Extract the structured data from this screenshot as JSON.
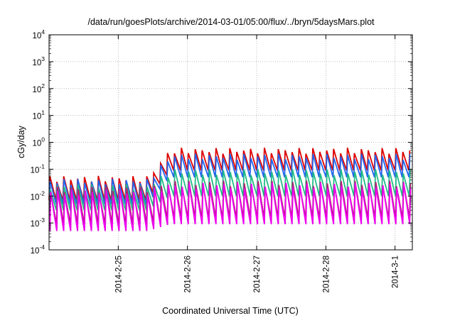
{
  "chart_data": {
    "type": "line",
    "title": "/data/run/goesPlots/archive/2014-03-01/05:00/flux/../bryn/5daysMars.plot",
    "xlabel": "Coordinated Universal Time (UTC)",
    "ylabel": "cGy/day",
    "yscale": "log",
    "ylim": [
      0.0001,
      10000
    ],
    "xlim": [
      "2014-02-24 00:00",
      "2014-03-01 06:00"
    ],
    "grid": true,
    "x_ticks": [
      {
        "label": "2014-2-25",
        "date": "2014-02-25"
      },
      {
        "label": "2014-2-26",
        "date": "2014-02-26"
      },
      {
        "label": "2014-2-27",
        "date": "2014-02-27"
      },
      {
        "label": "2014-2-28",
        "date": "2014-02-28"
      },
      {
        "label": "2014-3-1",
        "date": "2014-03-01"
      }
    ],
    "y_ticks": [
      {
        "base": "10",
        "exp": "-4",
        "value": 0.0001
      },
      {
        "base": "10",
        "exp": "-3",
        "value": 0.001
      },
      {
        "base": "10",
        "exp": "-2",
        "value": 0.01
      },
      {
        "base": "10",
        "exp": "-1",
        "value": 0.1
      },
      {
        "base": "10",
        "exp": "0",
        "value": 1
      },
      {
        "base": "10",
        "exp": "1",
        "value": 10
      },
      {
        "base": "10",
        "exp": "2",
        "value": 100
      },
      {
        "base": "10",
        "exp": "3",
        "value": 1000
      },
      {
        "base": "10",
        "exp": "4",
        "value": 10000
      }
    ],
    "sawtooth_period_hours": 2.4,
    "level_step": {
      "date": "2014-02-25 10:00",
      "ramp_end": "2014-02-25 18:00"
    },
    "series": [
      {
        "color": "#dd0000",
        "before_step": {
          "peak": 0.045,
          "trough": 0.007
        },
        "after_step": {
          "peak": 0.5,
          "trough": 0.09
        }
      },
      {
        "color": "#2266ee",
        "before_step": {
          "peak": 0.035,
          "trough": 0.005
        },
        "after_step": {
          "peak": 0.3,
          "trough": 0.05
        }
      },
      {
        "color": "#22bb88",
        "before_step": {
          "peak": 0.022,
          "trough": 0.003
        },
        "after_step": {
          "peak": 0.08,
          "trough": 0.01
        }
      },
      {
        "color": "#b02070",
        "before_step": {
          "peak": 0.018,
          "trough": 0.0009
        },
        "after_step": {
          "peak": 0.03,
          "trough": 0.0015
        }
      },
      {
        "color": "#ee00ee",
        "before_step": {
          "peak": 0.014,
          "trough": 0.0005
        },
        "after_step": {
          "peak": 0.025,
          "trough": 0.0009
        }
      }
    ]
  }
}
